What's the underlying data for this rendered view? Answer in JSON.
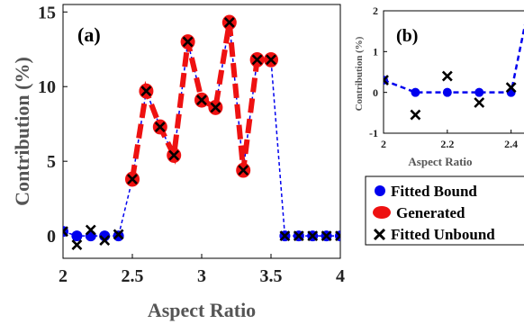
{
  "chart_data": [
    {
      "panel": "(a)",
      "type": "line",
      "xlabel": "Aspect Ratio",
      "ylabel": "Contribution (%)",
      "xlim": [
        2,
        4
      ],
      "ylim": [
        -1.5,
        15.5
      ],
      "xticks": [
        "2",
        "2.5",
        "3",
        "3.5",
        "4"
      ],
      "yticks": [
        "0",
        "5",
        "10",
        "15"
      ],
      "series": [
        {
          "name": "Fitted Bound",
          "color": "#0000ee",
          "marker": "circle",
          "line": "dashed-thin",
          "x": [
            2.0,
            2.1,
            2.2,
            2.3,
            2.4,
            2.5,
            2.6,
            2.7,
            2.8,
            2.9,
            3.0,
            3.1,
            3.2,
            3.3,
            3.4,
            3.5,
            3.6,
            3.7,
            3.8,
            3.9,
            4.0
          ],
          "y": [
            0.3,
            0.0,
            0.0,
            0.0,
            0.0,
            3.8,
            9.7,
            7.3,
            5.4,
            13.0,
            9.1,
            8.6,
            14.3,
            4.4,
            11.8,
            11.8,
            0.0,
            0.0,
            0.0,
            0.0,
            0.0
          ]
        },
        {
          "name": "Generated",
          "color": "#ee1111",
          "marker": "circle",
          "line": "dashed-thick",
          "x": [
            2.5,
            2.6,
            2.7,
            2.8,
            2.9,
            3.0,
            3.1,
            3.2,
            3.3,
            3.4,
            3.5
          ],
          "y": [
            3.8,
            9.7,
            7.3,
            5.4,
            13.0,
            9.1,
            8.6,
            14.3,
            4.4,
            11.8,
            11.8
          ]
        },
        {
          "name": "Fitted Unbound",
          "color": "#000000",
          "marker": "x",
          "line": "none",
          "x": [
            2.0,
            2.1,
            2.2,
            2.3,
            2.4,
            2.5,
            2.6,
            2.7,
            2.8,
            2.9,
            3.0,
            3.1,
            3.2,
            3.3,
            3.4,
            3.5,
            3.6,
            3.7,
            3.8,
            3.9,
            4.0
          ],
          "y": [
            0.3,
            -0.6,
            0.4,
            -0.3,
            0.1,
            3.8,
            9.7,
            7.3,
            5.4,
            13.0,
            9.1,
            8.6,
            14.3,
            4.4,
            11.8,
            11.8,
            0.0,
            0.0,
            0.0,
            0.0,
            0.0
          ]
        }
      ]
    },
    {
      "panel": "(b)",
      "type": "line",
      "xlabel": "Aspect Ratio",
      "ylabel": "Contribution (%)",
      "xlim": [
        2,
        2.48
      ],
      "ylim": [
        -1,
        2
      ],
      "xticks": [
        "2",
        "2.2",
        "2.4"
      ],
      "yticks": [
        "-1",
        "0",
        "1",
        "2"
      ],
      "series": [
        {
          "name": "Fitted Bound",
          "color": "#0000ee",
          "marker": "circle",
          "line": "dashed",
          "x": [
            2.0,
            2.1,
            2.2,
            2.3,
            2.4,
            2.5
          ],
          "y": [
            0.3,
            0.0,
            0.0,
            0.0,
            0.0,
            3.8
          ]
        },
        {
          "name": "Fitted Unbound",
          "color": "#000000",
          "marker": "x",
          "line": "none",
          "x": [
            2.0,
            2.1,
            2.2,
            2.3,
            2.4
          ],
          "y": [
            0.3,
            -0.55,
            0.4,
            -0.25,
            0.12
          ]
        }
      ]
    }
  ],
  "legend": {
    "items": [
      {
        "label": "Fitted Bound",
        "marker": "circle",
        "color": "#0000ee"
      },
      {
        "label": "Generated",
        "marker": "circle",
        "color": "#ee1111"
      },
      {
        "label": "Fitted Unbound",
        "marker": "x",
        "color": "#000000"
      }
    ]
  }
}
